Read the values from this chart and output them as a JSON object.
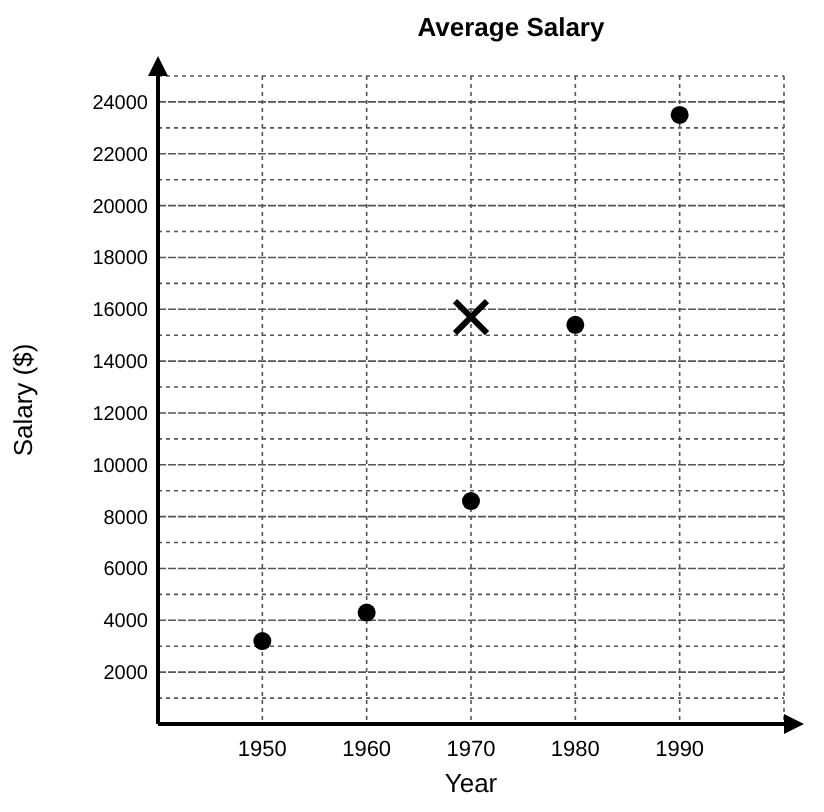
{
  "chart_data": {
    "type": "scatter",
    "title": "Average Salary",
    "xlabel": "Year",
    "ylabel": "Salary ($)",
    "series": [
      {
        "color": "#000000",
        "marker": "circle",
        "x": [
          1950,
          1960,
          1970,
          1980,
          1990
        ],
        "values": [
          3200,
          4300,
          8600,
          15400,
          23500
        ]
      },
      {
        "color": "#000000",
        "marker": "cross",
        "x": [
          1970
        ],
        "values": [
          15700
        ]
      }
    ],
    "xlim": [
      1940,
      2000
    ],
    "xticks": [
      1950,
      1960,
      1970,
      1980,
      1990,
      {
        "value": 2000,
        "label": null
      }
    ],
    "ylim": [
      0,
      25000
    ],
    "yticks": [
      {
        "value": 1000,
        "label": null
      },
      2000,
      {
        "value": 3000,
        "label": null
      },
      4000,
      {
        "value": 5000,
        "label": null
      },
      6000,
      {
        "value": 7000,
        "label": null
      },
      8000,
      {
        "value": 9000,
        "label": null
      },
      10000,
      {
        "value": 11000,
        "label": null
      },
      12000,
      {
        "value": 13000,
        "label": null
      },
      14000,
      {
        "value": 15000,
        "label": null
      },
      16000,
      {
        "value": 17000,
        "label": null
      },
      18000,
      {
        "value": 19000,
        "label": null
      },
      20000,
      {
        "value": 21000,
        "label": null
      },
      22000,
      {
        "value": 23000,
        "label": null
      },
      24000,
      {
        "value": 25000,
        "label": null
      }
    ],
    "grid": true
  }
}
